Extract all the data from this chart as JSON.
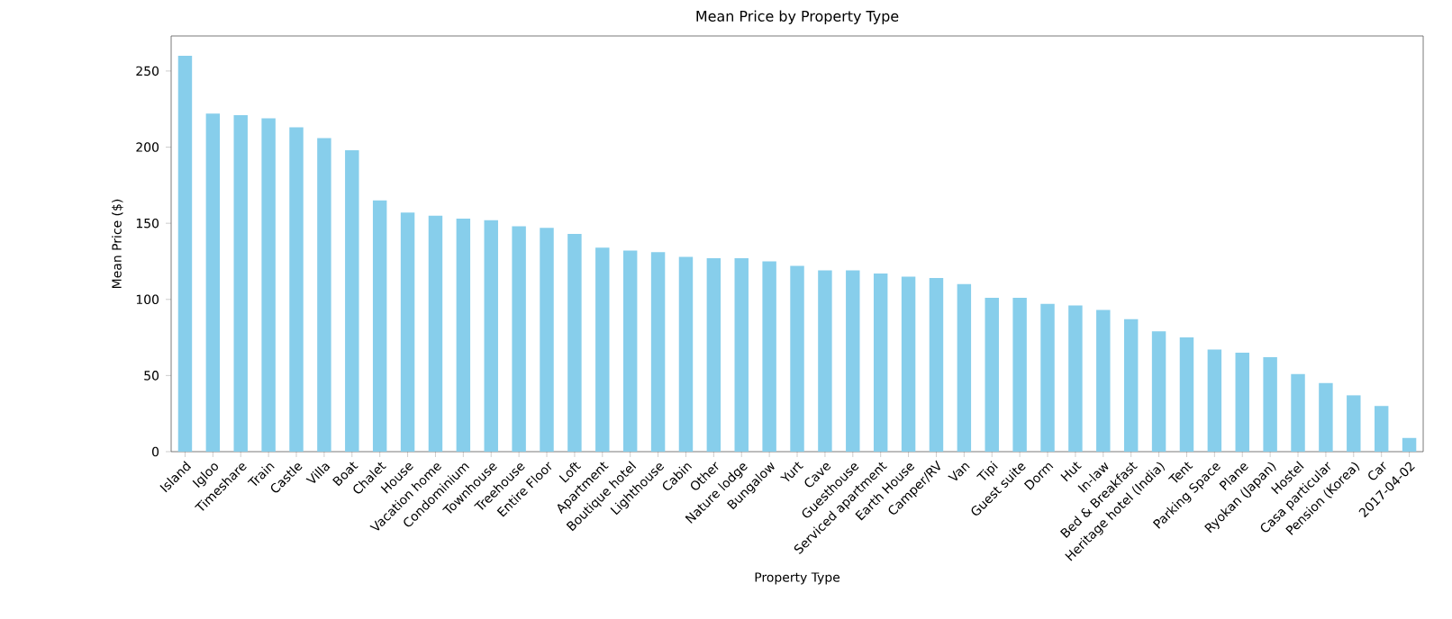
{
  "chart_data": {
    "type": "bar",
    "title": "Mean Price by Property Type",
    "xlabel": "Property Type",
    "ylabel": "Mean Price ($)",
    "categories": [
      "Island",
      "Igloo",
      "Timeshare",
      "Train",
      "Castle",
      "Villa",
      "Boat",
      "Chalet",
      "House",
      "Vacation home",
      "Condominium",
      "Townhouse",
      "Treehouse",
      "Entire Floor",
      "Loft",
      "Apartment",
      "Boutique hotel",
      "Lighthouse",
      "Cabin",
      "Other",
      "Nature lodge",
      "Bungalow",
      "Yurt",
      "Cave",
      "Guesthouse",
      "Serviced apartment",
      "Earth House",
      "Camper/RV",
      "Van",
      "Tipi",
      "Guest suite",
      "Dorm",
      "Hut",
      "In-law",
      "Bed & Breakfast",
      "Heritage hotel (India)",
      "Tent",
      "Parking Space",
      "Plane",
      "Ryokan (Japan)",
      "Hostel",
      "Casa particular",
      "Pension (Korea)",
      "Car",
      "2017-04-02"
    ],
    "values": [
      260,
      222,
      221,
      219,
      213,
      206,
      198,
      165,
      157,
      155,
      153,
      152,
      148,
      147,
      143,
      134,
      132,
      131,
      128,
      127,
      127,
      125,
      122,
      119,
      119,
      117,
      115,
      114,
      110,
      101,
      101,
      97,
      96,
      93,
      87,
      79,
      75,
      67,
      65,
      62,
      51,
      45,
      37,
      30,
      9
    ],
    "color": "#87ceeb",
    "ylim": [
      0,
      273
    ],
    "yticks": [
      0,
      50,
      100,
      150,
      200,
      250
    ]
  }
}
